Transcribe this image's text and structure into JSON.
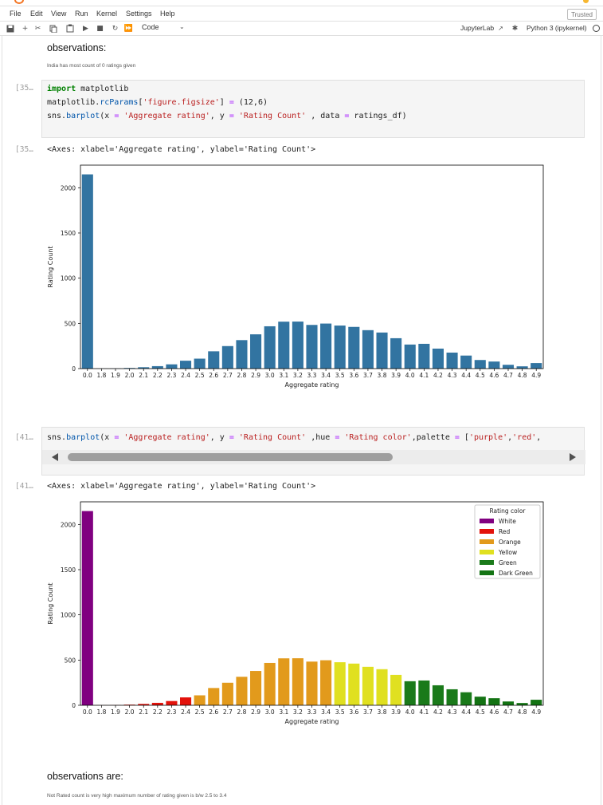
{
  "menu": [
    "File",
    "Edit",
    "View",
    "Run",
    "Kernel",
    "Settings",
    "Help"
  ],
  "trusted_label": "Trusted",
  "toolbar": {
    "cell_type": "Code",
    "jupyterlab_label": "JupyterLab",
    "kernel_label": "Python 3 (ipykernel)",
    "icons": [
      "save-icon",
      "add-cell-icon",
      "cut-icon",
      "copy-icon",
      "paste-icon",
      "run-icon",
      "stop-icon",
      "restart-icon",
      "fast-forward-icon"
    ]
  },
  "cells": {
    "md1": {
      "heading": "observations:",
      "text": "India has most count of 0 ratings given"
    },
    "code1": {
      "prompt": "[35…",
      "out_prompt": "[35…",
      "output_text": "<Axes: xlabel='Aggregate rating', ylabel='Rating Count'>"
    },
    "code2": {
      "prompt": "[41…",
      "out_prompt": "[41…",
      "output_text": "<Axes: xlabel='Aggregate rating', ylabel='Rating Count'>"
    },
    "md2": {
      "heading": "observations are:",
      "text": "Not Rated count is very high maximum number of rating given is b/w 2.5 to 3.4"
    }
  },
  "chart_data": [
    {
      "type": "bar",
      "categories": [
        "0.0",
        "1.8",
        "1.9",
        "2.0",
        "2.1",
        "2.2",
        "2.3",
        "2.4",
        "2.5",
        "2.6",
        "2.7",
        "2.8",
        "2.9",
        "3.0",
        "3.1",
        "3.2",
        "3.3",
        "3.4",
        "3.5",
        "3.6",
        "3.7",
        "3.8",
        "3.9",
        "4.0",
        "4.1",
        "4.2",
        "4.3",
        "4.4",
        "4.5",
        "4.6",
        "4.7",
        "4.8",
        "4.9"
      ],
      "values": [
        2148,
        1,
        2,
        7,
        15,
        27,
        47,
        87,
        110,
        191,
        249,
        315,
        379,
        468,
        519,
        520,
        483,
        498,
        476,
        461,
        425,
        399,
        336,
        266,
        274,
        221,
        177,
        144,
        95,
        78,
        42,
        25,
        61
      ],
      "xlabel": "Aggregate rating",
      "ylabel": "Rating Count",
      "ylim": [
        0,
        2250
      ],
      "yticks": [
        0,
        500,
        1000,
        1500,
        2000
      ],
      "color": "#3274a1",
      "grid": false
    },
    {
      "type": "bar",
      "categories": [
        "0.0",
        "1.8",
        "1.9",
        "2.0",
        "2.1",
        "2.2",
        "2.3",
        "2.4",
        "2.5",
        "2.6",
        "2.7",
        "2.8",
        "2.9",
        "3.0",
        "3.1",
        "3.2",
        "3.3",
        "3.4",
        "3.5",
        "3.6",
        "3.7",
        "3.8",
        "3.9",
        "4.0",
        "4.1",
        "4.2",
        "4.3",
        "4.4",
        "4.5",
        "4.6",
        "4.7",
        "4.8",
        "4.9"
      ],
      "values": [
        2148,
        1,
        2,
        7,
        15,
        27,
        47,
        87,
        110,
        191,
        249,
        315,
        379,
        468,
        519,
        520,
        483,
        498,
        476,
        461,
        425,
        399,
        336,
        266,
        274,
        221,
        177,
        144,
        95,
        78,
        42,
        25,
        61
      ],
      "hue": [
        "White",
        "Red",
        "Red",
        "Red",
        "Red",
        "Red",
        "Red",
        "Red",
        "Orange",
        "Orange",
        "Orange",
        "Orange",
        "Orange",
        "Orange",
        "Orange",
        "Orange",
        "Orange",
        "Orange",
        "Yellow",
        "Yellow",
        "Yellow",
        "Yellow",
        "Yellow",
        "Green",
        "Green",
        "Green",
        "Green",
        "Green",
        "Dark Green",
        "Dark Green",
        "Dark Green",
        "Dark Green",
        "Dark Green"
      ],
      "legend": {
        "title": "Rating color",
        "entries": [
          "White",
          "Red",
          "Orange",
          "Yellow",
          "Green",
          "Dark Green"
        ],
        "colors": [
          "#800080",
          "#e3120b",
          "#e29a1c",
          "#e0e020",
          "#1a7a1a",
          "#137313"
        ],
        "placement": "top-right"
      },
      "xlabel": "Aggregate rating",
      "ylabel": "Rating Count",
      "ylim": [
        0,
        2250
      ],
      "yticks": [
        0,
        500,
        1000,
        1500,
        2000
      ],
      "grid": false
    }
  ]
}
